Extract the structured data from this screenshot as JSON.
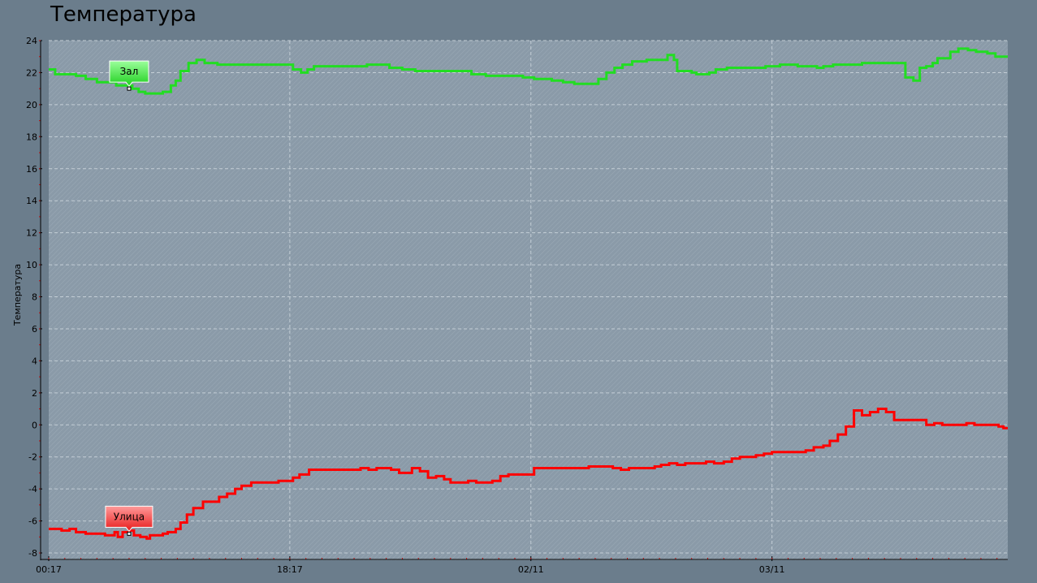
{
  "chart_data": {
    "type": "line",
    "title": "Температура",
    "ylabel": "Температура",
    "xlabel": "",
    "ylim": [
      -8,
      24
    ],
    "yticks": [
      -8,
      -6,
      -4,
      -2,
      0,
      2,
      4,
      6,
      8,
      10,
      12,
      14,
      16,
      18,
      20,
      22,
      24
    ],
    "xlim": [
      0,
      59.67
    ],
    "xticks": [
      {
        "x": 0,
        "label": "00:17"
      },
      {
        "x": 15,
        "label": "18:17"
      },
      {
        "x": 30,
        "label": "02/11"
      },
      {
        "x": 45,
        "label": "03/11"
      }
    ],
    "grid": true,
    "step": true,
    "series": [
      {
        "name": "Зал",
        "color": "#22dd22",
        "points": [
          [
            0.0,
            22.2
          ],
          [
            0.4,
            21.9
          ],
          [
            1.7,
            21.8
          ],
          [
            2.3,
            21.6
          ],
          [
            3.0,
            21.4
          ],
          [
            4.2,
            21.2
          ],
          [
            5.2,
            21.0
          ],
          [
            5.6,
            20.8
          ],
          [
            6.0,
            20.7
          ],
          [
            7.1,
            20.8
          ],
          [
            7.6,
            21.2
          ],
          [
            7.9,
            21.5
          ],
          [
            8.2,
            22.1
          ],
          [
            8.7,
            22.6
          ],
          [
            9.2,
            22.8
          ],
          [
            9.7,
            22.6
          ],
          [
            10.5,
            22.5
          ],
          [
            11.5,
            22.5
          ],
          [
            15.2,
            22.2
          ],
          [
            15.7,
            22.0
          ],
          [
            16.1,
            22.2
          ],
          [
            16.5,
            22.4
          ],
          [
            17.5,
            22.4
          ],
          [
            19.8,
            22.5
          ],
          [
            21.2,
            22.3
          ],
          [
            22.0,
            22.2
          ],
          [
            22.8,
            22.1
          ],
          [
            25.0,
            22.1
          ],
          [
            26.3,
            21.9
          ],
          [
            27.2,
            21.8
          ],
          [
            29.5,
            21.7
          ],
          [
            30.2,
            21.6
          ],
          [
            31.3,
            21.5
          ],
          [
            32.0,
            21.4
          ],
          [
            32.7,
            21.3
          ],
          [
            33.8,
            21.3
          ],
          [
            34.2,
            21.6
          ],
          [
            34.7,
            22.0
          ],
          [
            35.2,
            22.3
          ],
          [
            35.7,
            22.5
          ],
          [
            36.3,
            22.7
          ],
          [
            37.2,
            22.8
          ],
          [
            38.0,
            22.8
          ],
          [
            38.5,
            23.1
          ],
          [
            38.9,
            22.8
          ],
          [
            39.1,
            22.1
          ],
          [
            40.0,
            22.0
          ],
          [
            40.3,
            21.9
          ],
          [
            41.1,
            22.0
          ],
          [
            41.5,
            22.2
          ],
          [
            42.2,
            22.3
          ],
          [
            44.6,
            22.4
          ],
          [
            45.5,
            22.5
          ],
          [
            46.6,
            22.4
          ],
          [
            47.8,
            22.3
          ],
          [
            48.2,
            22.4
          ],
          [
            48.8,
            22.5
          ],
          [
            50.6,
            22.6
          ],
          [
            53.0,
            22.6
          ],
          [
            53.3,
            21.7
          ],
          [
            53.8,
            21.5
          ],
          [
            54.2,
            22.3
          ],
          [
            54.6,
            22.4
          ],
          [
            55.0,
            22.6
          ],
          [
            55.3,
            22.9
          ],
          [
            56.1,
            23.3
          ],
          [
            56.6,
            23.5
          ],
          [
            57.2,
            23.4
          ],
          [
            57.7,
            23.3
          ],
          [
            58.4,
            23.2
          ],
          [
            58.9,
            23.0
          ],
          [
            59.67,
            23.0
          ]
        ],
        "callout": {
          "x": 5.0,
          "y": 21.0,
          "label": "Зал"
        }
      },
      {
        "name": "Улица",
        "color": "#ff0000",
        "points": [
          [
            0.0,
            -6.5
          ],
          [
            0.6,
            -6.5
          ],
          [
            0.8,
            -6.6
          ],
          [
            1.3,
            -6.5
          ],
          [
            1.7,
            -6.7
          ],
          [
            2.3,
            -6.8
          ],
          [
            3.3,
            -6.8
          ],
          [
            3.5,
            -6.9
          ],
          [
            4.1,
            -6.7
          ],
          [
            4.3,
            -7.0
          ],
          [
            4.6,
            -6.7
          ],
          [
            5.0,
            -6.6
          ],
          [
            5.3,
            -6.9
          ],
          [
            5.7,
            -7.0
          ],
          [
            6.1,
            -7.1
          ],
          [
            6.3,
            -6.9
          ],
          [
            6.7,
            -6.9
          ],
          [
            7.1,
            -6.8
          ],
          [
            7.4,
            -6.7
          ],
          [
            7.9,
            -6.5
          ],
          [
            8.2,
            -6.1
          ],
          [
            8.6,
            -5.6
          ],
          [
            9.0,
            -5.2
          ],
          [
            9.6,
            -4.8
          ],
          [
            10.6,
            -4.5
          ],
          [
            11.1,
            -4.3
          ],
          [
            11.6,
            -4.0
          ],
          [
            12.0,
            -3.8
          ],
          [
            12.6,
            -3.6
          ],
          [
            14.3,
            -3.5
          ],
          [
            15.2,
            -3.3
          ],
          [
            15.6,
            -3.1
          ],
          [
            16.2,
            -2.8
          ],
          [
            19.4,
            -2.7
          ],
          [
            19.9,
            -2.8
          ],
          [
            20.4,
            -2.7
          ],
          [
            21.3,
            -2.8
          ],
          [
            21.8,
            -3.0
          ],
          [
            22.6,
            -2.7
          ],
          [
            23.1,
            -2.9
          ],
          [
            23.6,
            -3.3
          ],
          [
            24.1,
            -3.2
          ],
          [
            24.6,
            -3.4
          ],
          [
            25.0,
            -3.6
          ],
          [
            26.1,
            -3.5
          ],
          [
            26.6,
            -3.6
          ],
          [
            27.6,
            -3.5
          ],
          [
            28.1,
            -3.2
          ],
          [
            28.6,
            -3.1
          ],
          [
            30.2,
            -2.7
          ],
          [
            33.6,
            -2.6
          ],
          [
            35.1,
            -2.7
          ],
          [
            35.6,
            -2.8
          ],
          [
            36.1,
            -2.7
          ],
          [
            37.7,
            -2.6
          ],
          [
            38.1,
            -2.5
          ],
          [
            38.6,
            -2.4
          ],
          [
            39.1,
            -2.5
          ],
          [
            39.6,
            -2.4
          ],
          [
            40.9,
            -2.3
          ],
          [
            41.4,
            -2.4
          ],
          [
            42.0,
            -2.3
          ],
          [
            42.5,
            -2.1
          ],
          [
            43.0,
            -2.0
          ],
          [
            44.0,
            -1.9
          ],
          [
            44.5,
            -1.8
          ],
          [
            45.0,
            -1.7
          ],
          [
            46.1,
            -1.7
          ],
          [
            47.1,
            -1.6
          ],
          [
            47.6,
            -1.4
          ],
          [
            48.2,
            -1.3
          ],
          [
            48.6,
            -1.0
          ],
          [
            49.1,
            -0.6
          ],
          [
            49.6,
            -0.1
          ],
          [
            50.1,
            0.9
          ],
          [
            50.6,
            0.6
          ],
          [
            51.1,
            0.8
          ],
          [
            51.6,
            1.0
          ],
          [
            52.1,
            0.8
          ],
          [
            52.6,
            0.3
          ],
          [
            54.6,
            0.0
          ],
          [
            55.1,
            0.1
          ],
          [
            55.6,
            0.0
          ],
          [
            56.1,
            0.0
          ],
          [
            57.1,
            0.1
          ],
          [
            57.6,
            0.0
          ],
          [
            58.6,
            0.0
          ],
          [
            59.1,
            -0.1
          ],
          [
            59.4,
            -0.2
          ],
          [
            59.67,
            -0.2
          ]
        ],
        "callout": {
          "x": 5.0,
          "y": -6.8,
          "label": "Улица"
        }
      }
    ]
  }
}
